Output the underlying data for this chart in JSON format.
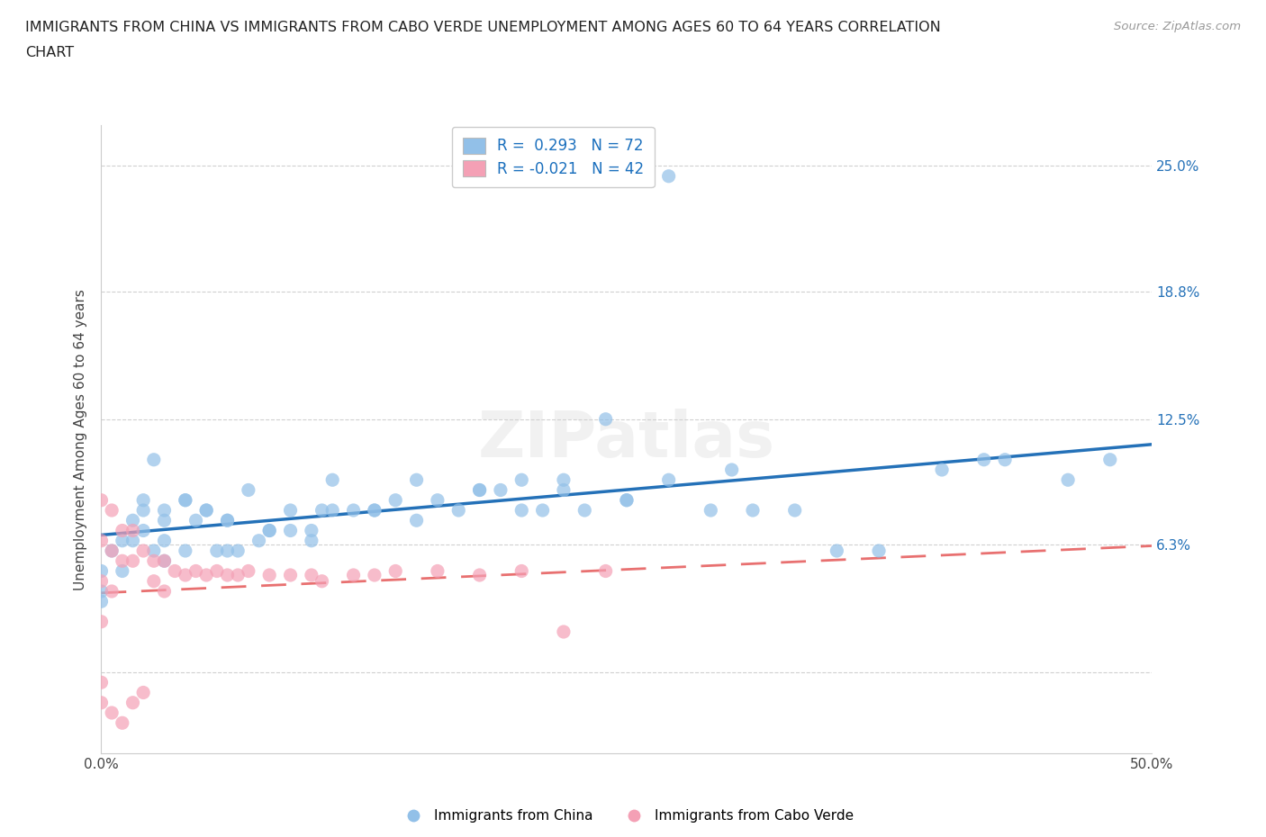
{
  "title_line1": "IMMIGRANTS FROM CHINA VS IMMIGRANTS FROM CABO VERDE UNEMPLOYMENT AMONG AGES 60 TO 64 YEARS CORRELATION",
  "title_line2": "CHART",
  "source": "Source: ZipAtlas.com",
  "ylabel": "Unemployment Among Ages 60 to 64 years",
  "xlim": [
    0.0,
    0.5
  ],
  "ylim": [
    -0.04,
    0.27
  ],
  "xtick_positions": [
    0.0,
    0.1,
    0.2,
    0.3,
    0.4,
    0.5
  ],
  "xticklabels": [
    "0.0%",
    "",
    "",
    "",
    "",
    "50.0%"
  ],
  "ytick_positions": [
    0.0,
    0.063,
    0.125,
    0.188,
    0.25
  ],
  "yticklabels": [
    "",
    "6.3%",
    "12.5%",
    "18.8%",
    "25.0%"
  ],
  "china_color": "#92c0e8",
  "cabo_color": "#f4a0b5",
  "china_line_color": "#2471b8",
  "cabo_line_color": "#e87070",
  "watermark": "ZIPatlas",
  "legend_R_china": "0.293",
  "legend_N_china": "72",
  "legend_R_cabo": "-0.021",
  "legend_N_cabo": "42",
  "china_scatter_x": [
    0.0,
    0.0,
    0.0,
    0.005,
    0.01,
    0.01,
    0.015,
    0.015,
    0.02,
    0.02,
    0.025,
    0.025,
    0.03,
    0.03,
    0.03,
    0.04,
    0.04,
    0.045,
    0.05,
    0.055,
    0.06,
    0.06,
    0.065,
    0.07,
    0.075,
    0.08,
    0.09,
    0.1,
    0.105,
    0.11,
    0.12,
    0.13,
    0.14,
    0.15,
    0.16,
    0.17,
    0.18,
    0.19,
    0.2,
    0.21,
    0.22,
    0.23,
    0.24,
    0.25,
    0.27,
    0.29,
    0.3,
    0.31,
    0.33,
    0.35,
    0.37,
    0.4,
    0.42,
    0.43,
    0.46,
    0.48,
    0.02,
    0.03,
    0.04,
    0.05,
    0.06,
    0.08,
    0.09,
    0.1,
    0.11,
    0.13,
    0.15,
    0.18,
    0.2,
    0.22,
    0.25,
    0.27
  ],
  "china_scatter_y": [
    0.05,
    0.04,
    0.035,
    0.06,
    0.065,
    0.05,
    0.075,
    0.065,
    0.08,
    0.07,
    0.105,
    0.06,
    0.08,
    0.065,
    0.055,
    0.085,
    0.06,
    0.075,
    0.08,
    0.06,
    0.075,
    0.06,
    0.06,
    0.09,
    0.065,
    0.07,
    0.07,
    0.07,
    0.08,
    0.095,
    0.08,
    0.08,
    0.085,
    0.095,
    0.085,
    0.08,
    0.09,
    0.09,
    0.095,
    0.08,
    0.095,
    0.08,
    0.125,
    0.085,
    0.095,
    0.08,
    0.1,
    0.08,
    0.08,
    0.06,
    0.06,
    0.1,
    0.105,
    0.105,
    0.095,
    0.105,
    0.085,
    0.075,
    0.085,
    0.08,
    0.075,
    0.07,
    0.08,
    0.065,
    0.08,
    0.08,
    0.075,
    0.09,
    0.08,
    0.09,
    0.085,
    0.245
  ],
  "cabo_scatter_x": [
    0.0,
    0.0,
    0.0,
    0.0,
    0.005,
    0.005,
    0.005,
    0.01,
    0.01,
    0.015,
    0.015,
    0.02,
    0.025,
    0.025,
    0.03,
    0.03,
    0.035,
    0.04,
    0.045,
    0.05,
    0.055,
    0.06,
    0.065,
    0.07,
    0.08,
    0.09,
    0.1,
    0.105,
    0.12,
    0.13,
    0.14,
    0.16,
    0.18,
    0.2,
    0.22,
    0.24,
    0.0,
    0.0,
    0.005,
    0.01,
    0.015,
    0.02
  ],
  "cabo_scatter_y": [
    0.085,
    0.065,
    0.045,
    0.025,
    0.08,
    0.06,
    0.04,
    0.07,
    0.055,
    0.07,
    0.055,
    0.06,
    0.055,
    0.045,
    0.055,
    0.04,
    0.05,
    0.048,
    0.05,
    0.048,
    0.05,
    0.048,
    0.048,
    0.05,
    0.048,
    0.048,
    0.048,
    0.045,
    0.048,
    0.048,
    0.05,
    0.05,
    0.048,
    0.05,
    0.02,
    0.05,
    -0.005,
    -0.015,
    -0.02,
    -0.025,
    -0.015,
    -0.01
  ],
  "grid_color": "#d0d0d0",
  "background_color": "#ffffff",
  "fig_background": "#ffffff"
}
